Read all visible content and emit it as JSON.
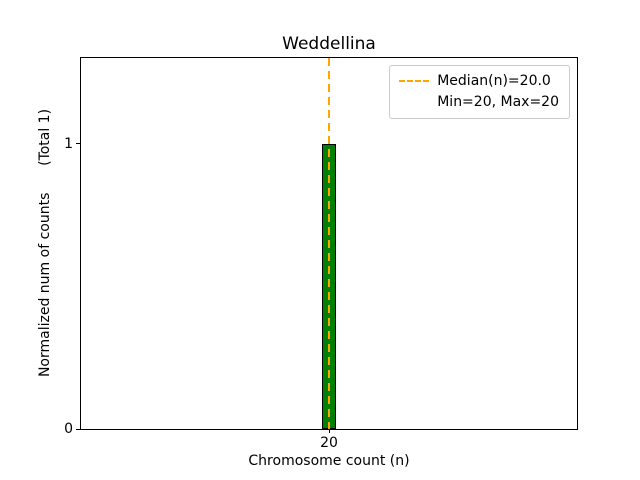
{
  "chart_data": {
    "type": "bar",
    "title": "Weddellina",
    "xlabel": "Chromosome count (n)",
    "ylabel": "Normalized num of counts      (Total 1)",
    "total_counts": 1,
    "x": [
      20
    ],
    "values": [
      1
    ],
    "bar_width": 0.034,
    "xlim": [
      19.4,
      20.6
    ],
    "ylim": [
      0,
      1.3
    ],
    "xticks": [
      20
    ],
    "yticks": [
      0,
      1
    ],
    "grid": false,
    "bar_color": "#008000",
    "bar_edge_color": "#000000",
    "median": 20.0,
    "min": 20,
    "max": 20,
    "median_line_color": "#FFA500",
    "median_line_style": "dashed",
    "legend_position": "upper right",
    "legend_labels": [
      "Median(n)=20.0",
      "Min=20, Max=20"
    ]
  }
}
